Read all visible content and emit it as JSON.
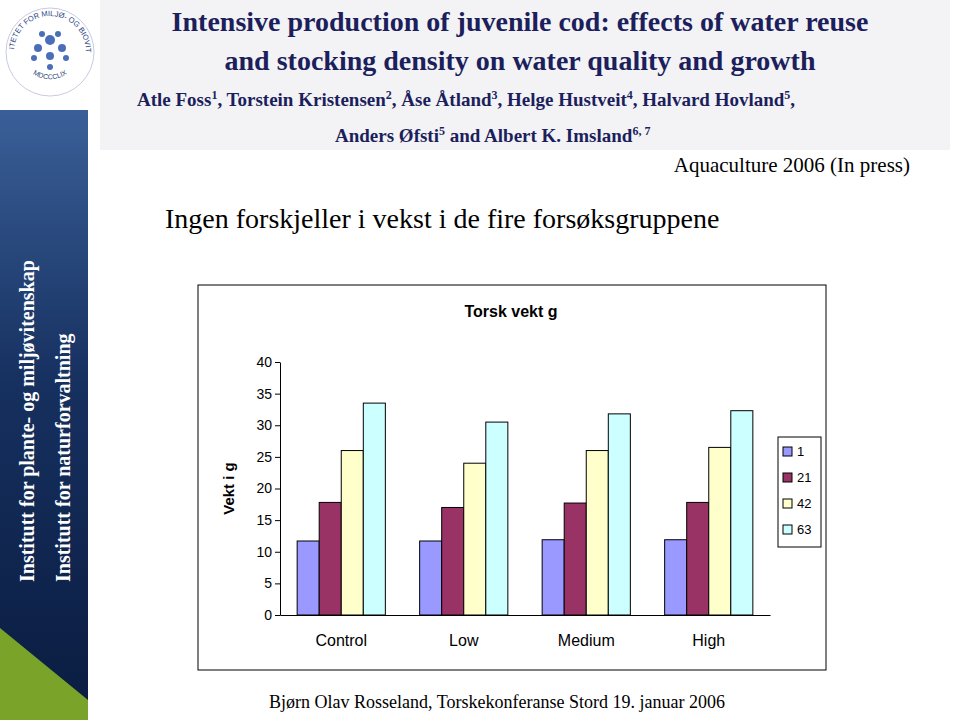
{
  "header": {
    "title_lines": [
      "Intensive production of juvenile cod: effects of water reuse",
      "and stocking density on water quality and growth"
    ],
    "author_lines": [
      [
        {
          "text": "Atle Foss",
          "sup": "1"
        },
        {
          "text": ", Torstein Kristensen",
          "sup": "2"
        },
        {
          "text": ", Åse Åtland",
          "sup": "3"
        },
        {
          "text": ", Helge Hustveit",
          "sup": "4"
        },
        {
          "text": ", Halvard Hovland",
          "sup": "5"
        },
        {
          "text": ","
        }
      ],
      [
        {
          "text": "Anders Øfsti",
          "sup": "5"
        },
        {
          "text": " and Albert K. Imsland",
          "sup": "6, 7"
        }
      ]
    ],
    "journal": "Aquaculture 2006 (In press)"
  },
  "logo": {
    "ring_text": "UNIVERSITETET FOR MILJØ- OG BIOVITENSKAP",
    "year_text": "MDCCCLIX"
  },
  "sidebar": [
    "Institutt for plante- og miljøvitenskap",
    "Institutt for naturforvaltning"
  ],
  "heading": "Ingen forskjeller i vekst i de fire forsøksgruppene",
  "footer": "Bjørn Olav Rosseland, Torskekonferanse Stord 19. januar 2006",
  "chart_data": {
    "type": "bar",
    "title": "Torsk vekt g",
    "y_label": "Vekt i g",
    "categories": [
      "Control",
      "Low",
      "Medium",
      "High"
    ],
    "series": [
      {
        "name": "1",
        "color": "#9999ff",
        "values": [
          11.7,
          11.7,
          11.9,
          11.9
        ]
      },
      {
        "name": "21",
        "color": "#993366",
        "values": [
          17.8,
          17.0,
          17.7,
          17.8
        ]
      },
      {
        "name": "42",
        "color": "#ffffcc",
        "values": [
          26.0,
          24.0,
          26.0,
          26.5
        ]
      },
      {
        "name": "63",
        "color": "#ccffff",
        "values": [
          33.5,
          30.5,
          31.8,
          32.3
        ]
      }
    ],
    "ylim": [
      0,
      40
    ],
    "yticks": [
      0,
      5,
      10,
      15,
      20,
      25,
      30,
      35,
      40
    ],
    "grid": false,
    "legend": "right"
  }
}
